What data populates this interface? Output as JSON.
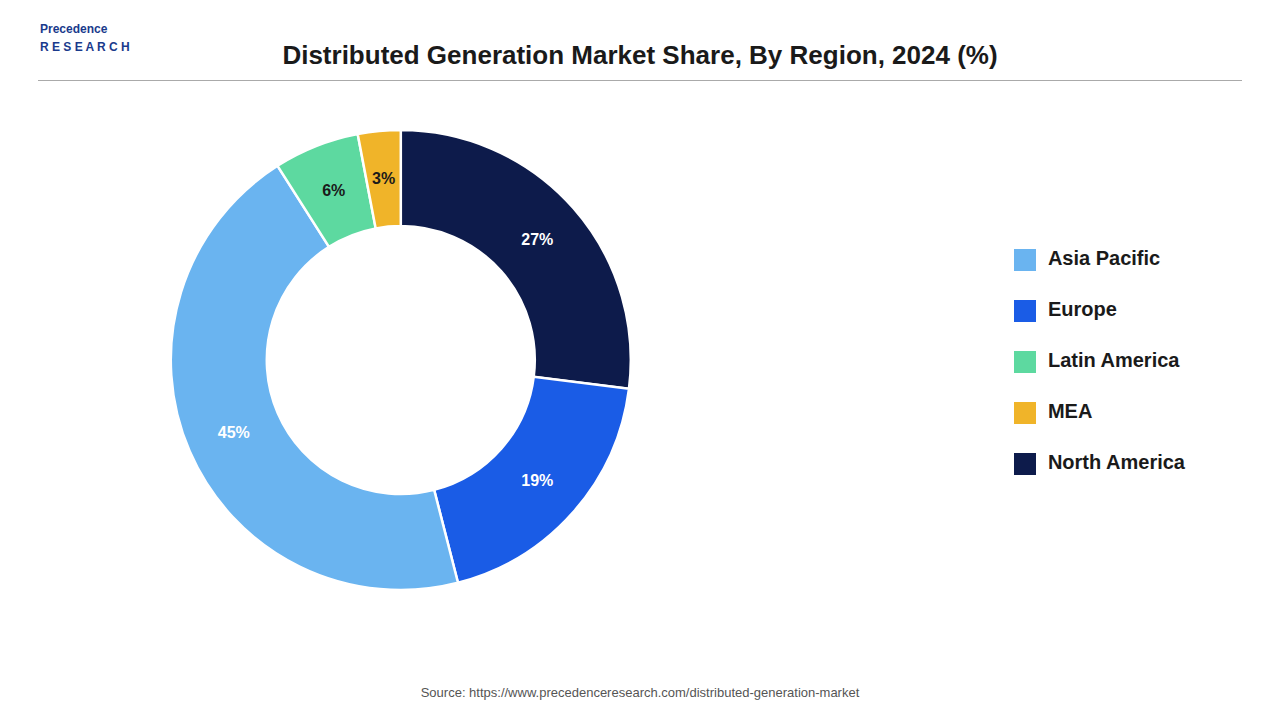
{
  "chart_data": {
    "type": "pie",
    "title": "Distributed Generation Market Share, By Region, 2024 (%)",
    "categories": [
      "North America",
      "Europe",
      "Asia Pacific",
      "Latin America",
      "MEA"
    ],
    "values": [
      27,
      19,
      45,
      6,
      3
    ],
    "value_labels": [
      "27%",
      "19%",
      "45%",
      "6%",
      "3%"
    ],
    "colors": [
      "#0d1b4b",
      "#1a5ce6",
      "#6ab4f0",
      "#5dd9a0",
      "#f0b429"
    ],
    "data_labels": true,
    "legend": "right",
    "annotations": [
      "Precedence\nR E S E A R C H",
      "Source: https://www.precedenceresearch.com/distributed-generation-market"
    ]
  }
}
